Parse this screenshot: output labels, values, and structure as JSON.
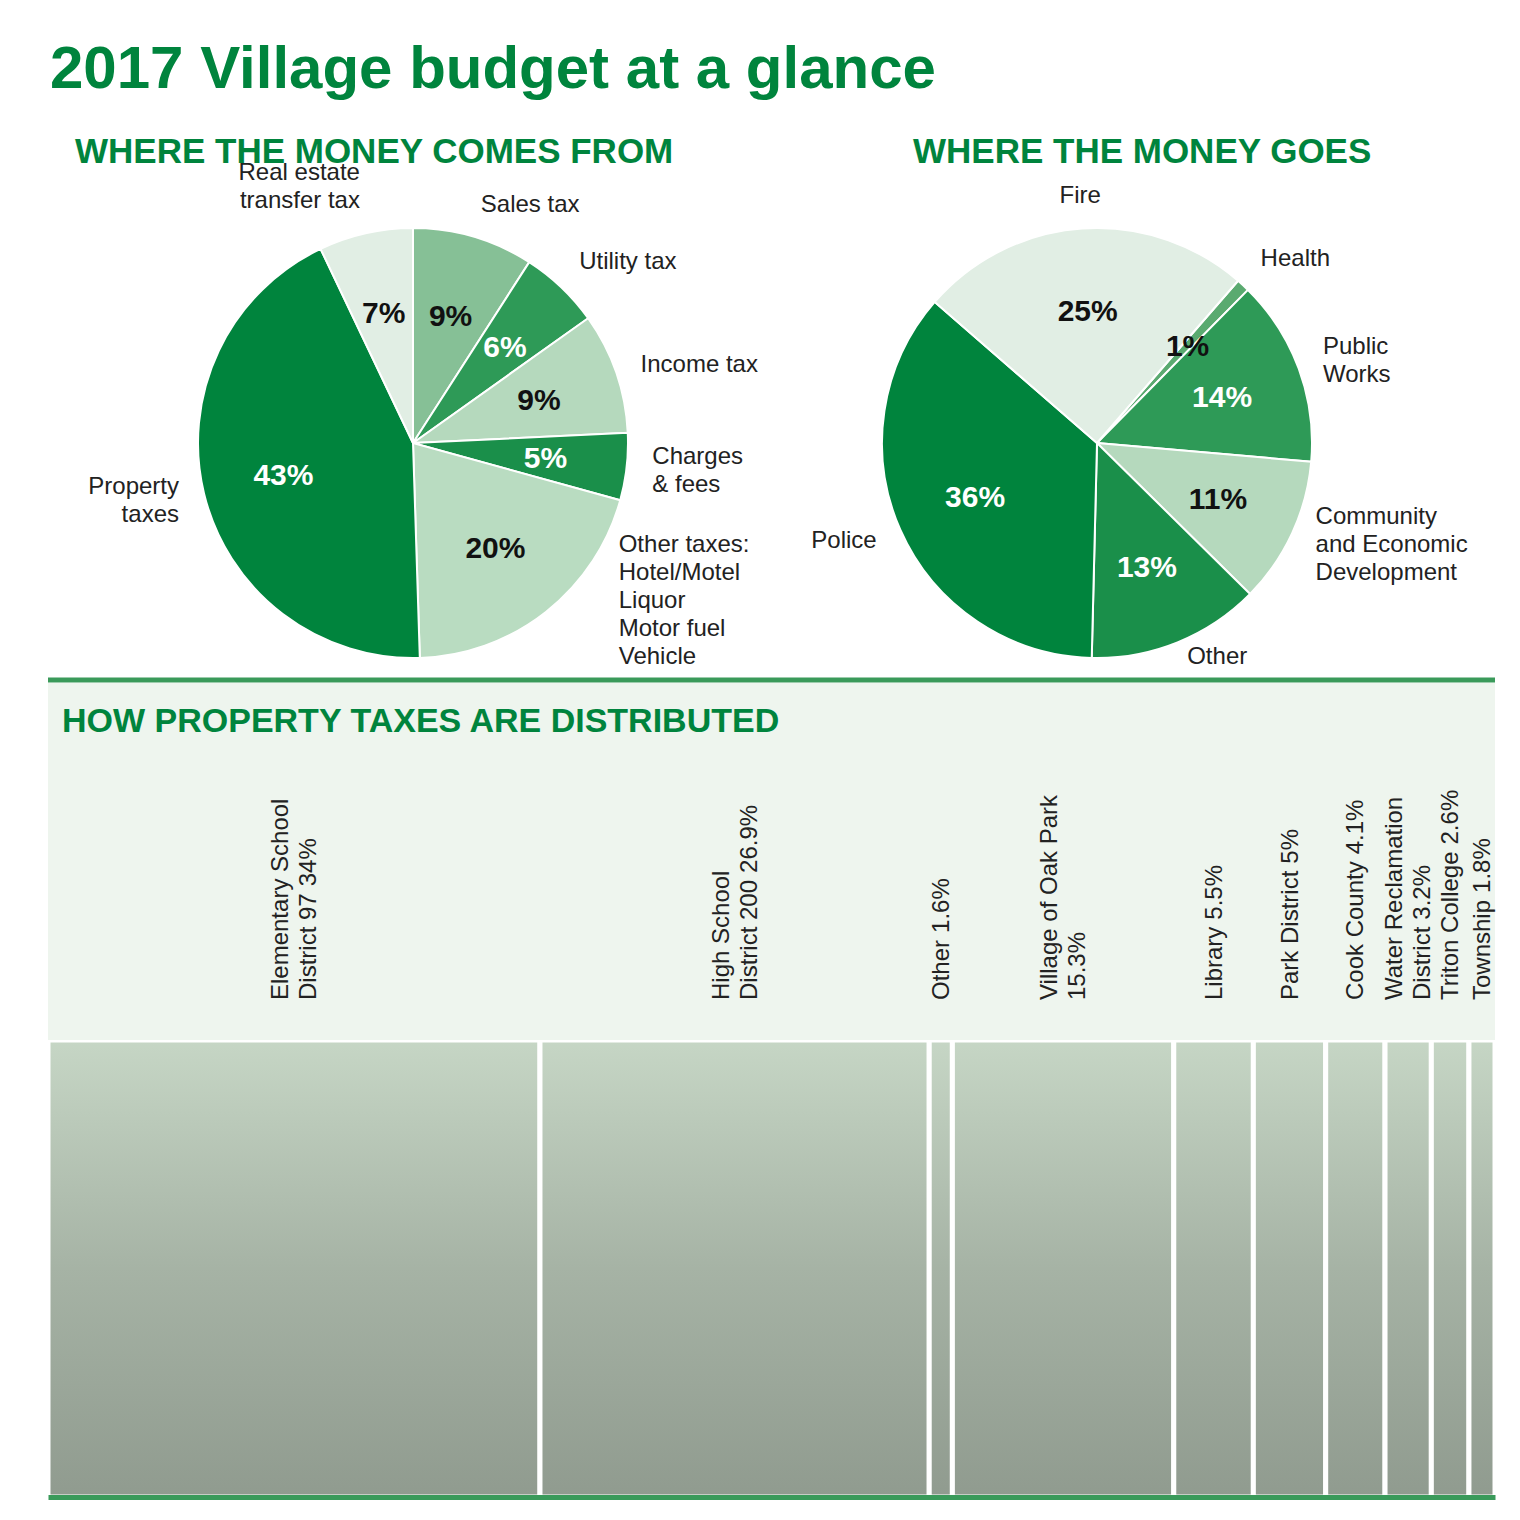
{
  "title": "2017 Village budget at a glance",
  "chart_data": [
    {
      "type": "pie",
      "title": "WHERE THE MONEY COMES FROM",
      "categories": [
        "Sales tax",
        "Utility tax",
        "Income tax",
        "Charges\n& fees",
        "Other taxes:\nHotel/Motel\nLiquor\nMotor fuel\nVehicle",
        "Property\ntaxes",
        "Real estate\ntransfer tax"
      ],
      "values": [
        9,
        6,
        9,
        5,
        20,
        43,
        7
      ],
      "value_labels": [
        "9%",
        "6%",
        "9%",
        "5%",
        "20%",
        "43%",
        "7%"
      ],
      "colors": [
        "#86c096",
        "#2e9a57",
        "#b5d9bd",
        "#1a8f4a",
        "#b9dcc1",
        "#00843d",
        "#e1eee4"
      ],
      "data_labels": true
    },
    {
      "type": "pie",
      "title": "WHERE THE MONEY GOES",
      "categories": [
        "Health",
        "Public\nWorks",
        "Community\nand Economic\nDevelopment",
        "Other",
        "Police",
        "Fire"
      ],
      "values": [
        1,
        14,
        11,
        13,
        36,
        25
      ],
      "value_labels": [
        "1%",
        "14%",
        "11%",
        "13%",
        "36%",
        "25%"
      ],
      "colors": [
        "#5aaa70",
        "#2e9a57",
        "#b5d9bd",
        "#1a8f4a",
        "#00843d",
        "#e1eee4"
      ],
      "data_labels": true
    },
    {
      "type": "bar",
      "title": "HOW PROPERTY TAXES ARE DISTRIBUTED",
      "orientation": "horizontal",
      "stacked": true,
      "categories": [
        "Elementary School\nDistrict 97",
        "High School\nDistrict 200",
        "Other",
        "Village of Oak Park\n",
        "Library",
        "Park District",
        "Cook County",
        "Water Reclamation\nDistrict",
        "Triton College",
        "Township"
      ],
      "values": [
        34,
        26.9,
        1.6,
        15.3,
        5.5,
        5,
        4.1,
        3.2,
        2.6,
        1.8
      ],
      "value_labels": [
        "34%",
        "26.9%",
        "1.6%",
        "15.3%",
        "5.5%",
        "5%",
        "4.1%",
        "3.2%",
        "2.6%",
        "1.8%"
      ],
      "color": "#a6b3a5",
      "xlim": [
        0,
        100
      ],
      "tick_labels": false,
      "data_labels": true
    }
  ]
}
